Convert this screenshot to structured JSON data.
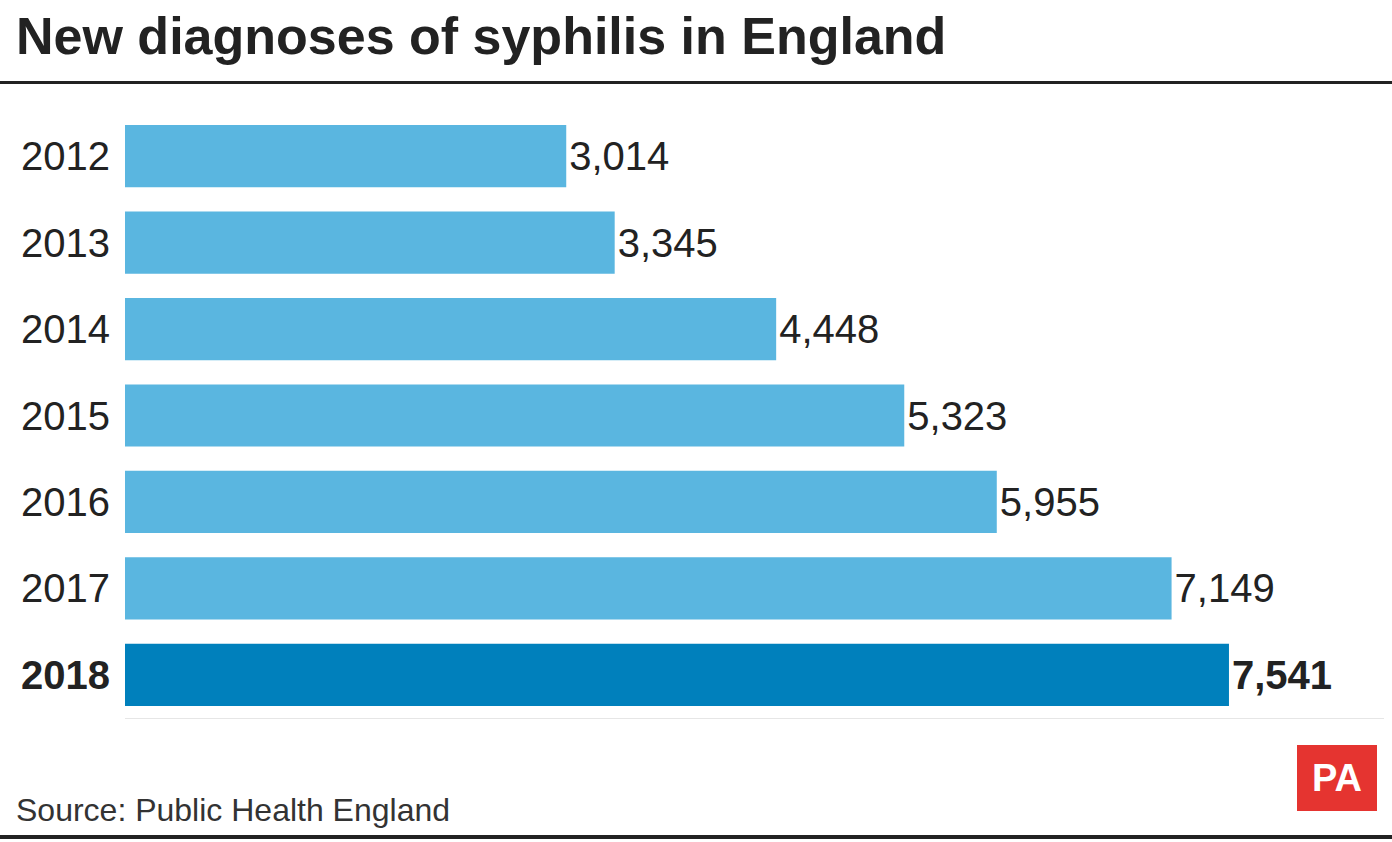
{
  "chart_data": {
    "type": "bar",
    "title": "New diagnoses of syphilis in England",
    "source": "Source: Public Health England",
    "logo": "PA",
    "orientation": "horizontal",
    "categories": [
      "2012",
      "2013",
      "2014",
      "2015",
      "2016",
      "2017",
      "2018"
    ],
    "values": [
      3014,
      3345,
      4448,
      5323,
      5955,
      7149,
      7541
    ],
    "value_labels": [
      "3,014",
      "3,345",
      "4,448",
      "5,323",
      "5,955",
      "7,149",
      "7,541"
    ],
    "colors": [
      "#5ab6e0",
      "#5ab6e0",
      "#5ab6e0",
      "#5ab6e0",
      "#5ab6e0",
      "#5ab6e0",
      "#0080bc"
    ],
    "xlim": [
      0,
      8600
    ],
    "data_labels": true,
    "tick_labels": "y",
    "grid": false
  }
}
